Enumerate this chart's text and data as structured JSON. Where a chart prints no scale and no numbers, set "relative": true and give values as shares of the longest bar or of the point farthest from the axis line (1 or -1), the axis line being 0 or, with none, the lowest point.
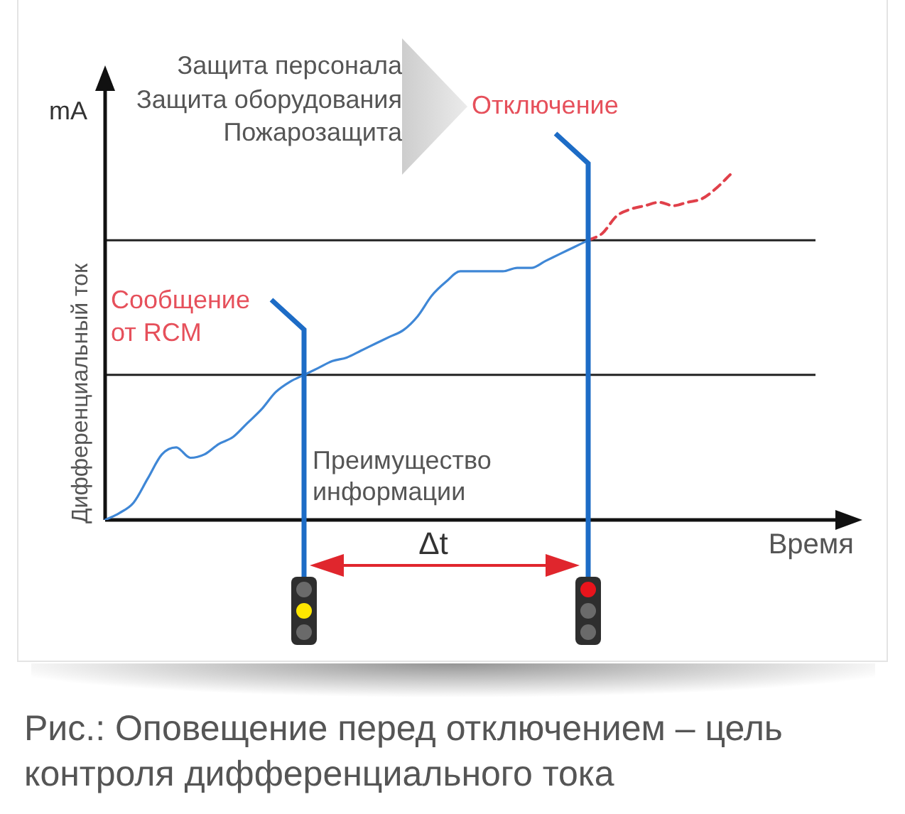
{
  "chart_data": {
    "type": "line",
    "relative": true,
    "xlabel": "Время",
    "ylabel": "Дифференциальный ток",
    "categories": [
      null,
      null,
      null,
      null,
      null,
      null,
      null,
      null,
      null,
      null,
      null,
      null,
      null,
      null,
      null,
      null,
      null,
      null,
      null,
      null,
      null,
      null,
      null,
      null,
      null,
      null,
      null,
      null,
      null,
      null,
      null,
      null,
      null,
      null,
      null,
      null,
      null,
      null,
      null,
      null,
      null,
      null,
      null,
      null,
      null,
      null,
      null,
      null,
      null,
      null,
      null
    ],
    "series": [
      {
        "color": "#3f87d6",
        "values": [
          0,
          0.02,
          0.05,
          0.12,
          0.19,
          0.21,
          0.18,
          0.19,
          0.22,
          0.24,
          0.28,
          0.32,
          0.37,
          0.4,
          0.42,
          0.44,
          0.46,
          0.47,
          0.49,
          0.51,
          0.53,
          0.55,
          0.59,
          0.65,
          0.69,
          0.72,
          0.72,
          0.72,
          0.72,
          0.73,
          0.73,
          0.75,
          0.77,
          0.79,
          0.81,
          null,
          null,
          null,
          null,
          null,
          null,
          null,
          null,
          null,
          null,
          null,
          null,
          null,
          null,
          null,
          null
        ]
      },
      {
        "color": "#e0404a",
        "line_style": "dashed",
        "values": [
          null,
          null,
          null,
          null,
          null,
          null,
          null,
          null,
          null,
          null,
          null,
          null,
          null,
          null,
          null,
          null,
          null,
          null,
          null,
          null,
          null,
          null,
          null,
          null,
          null,
          null,
          null,
          null,
          null,
          null,
          null,
          null,
          null,
          null,
          0.81,
          0.83,
          0.88,
          0.9,
          0.91,
          0.92,
          0.91,
          0.92,
          0.93,
          0.96,
          1,
          null,
          null,
          null,
          null,
          null,
          null
        ]
      }
    ],
    "marker": "none",
    "tick_labels": false,
    "ref_lines": [
      {
        "axis": "y",
        "value": 0.81,
        "color": "#222222"
      },
      {
        "axis": "y",
        "value": 0.42,
        "color": "#222222"
      }
    ],
    "annotations": [
      "mA",
      "Защита персонала",
      "Защита оборудования",
      "Пожарозащита",
      "Отключение",
      "Сообщение от RCM",
      "Преимущество информации",
      "Δt",
      "Рис.: Оповещение перед отключением – цель контроля дифференциального тока"
    ]
  }
}
